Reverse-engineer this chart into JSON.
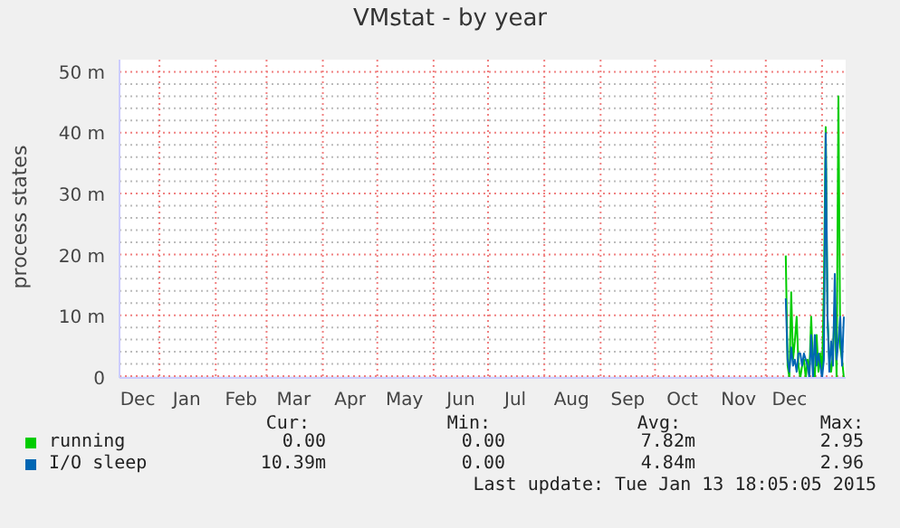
{
  "chart_data": {
    "type": "line",
    "title": "VMstat - by year",
    "ylabel": "process states",
    "x": [
      "2014-12-12",
      "2014-12-13",
      "2014-12-14",
      "2014-12-15",
      "2014-12-16",
      "2014-12-17",
      "2014-12-18",
      "2014-12-19",
      "2014-12-20",
      "2014-12-21",
      "2014-12-22",
      "2014-12-23",
      "2014-12-24",
      "2014-12-25",
      "2014-12-26",
      "2014-12-27",
      "2014-12-28",
      "2014-12-29",
      "2014-12-30",
      "2014-12-31",
      "2015-01-01",
      "2015-01-02",
      "2015-01-03",
      "2015-01-04",
      "2015-01-05",
      "2015-01-06",
      "2015-01-07",
      "2015-01-08",
      "2015-01-09",
      "2015-01-10",
      "2015-01-11",
      "2015-01-12",
      "2015-01-13"
    ],
    "series": [
      {
        "name": "running",
        "color": "#00cc00",
        "values": [
          20,
          2,
          0,
          14,
          3,
          6,
          10,
          2,
          0,
          2,
          3,
          0,
          3,
          1,
          10,
          2,
          0,
          7,
          1,
          4,
          1,
          15,
          41,
          10,
          3,
          1,
          4,
          12,
          0,
          46,
          5,
          3,
          0
        ]
      },
      {
        "name": "I/O sleep",
        "color": "#0066b3",
        "values": [
          13,
          3,
          1,
          5,
          2,
          3,
          1,
          4,
          4,
          2,
          4,
          3,
          2,
          0,
          7,
          0,
          7,
          2,
          4,
          2,
          0,
          3,
          40,
          10,
          1,
          6,
          2,
          17,
          3,
          6,
          10,
          2,
          10
        ]
      }
    ],
    "xlim": [
      "2013-12-10",
      "2015-01-14"
    ],
    "xticks": [
      {
        "value": "2013-12-20",
        "label": "Dec"
      },
      {
        "value": "2014-01-01",
        "label": null
      },
      {
        "value": "2014-01-16",
        "label": "Jan"
      },
      {
        "value": "2014-02-01",
        "label": null
      },
      {
        "value": "2014-02-15",
        "label": "Feb"
      },
      {
        "value": "2014-03-01",
        "label": null
      },
      {
        "value": "2014-03-16",
        "label": "Mar"
      },
      {
        "value": "2014-04-01",
        "label": null
      },
      {
        "value": "2014-04-16",
        "label": "Apr"
      },
      {
        "value": "2014-05-01",
        "label": null
      },
      {
        "value": "2014-05-16",
        "label": "May"
      },
      {
        "value": "2014-06-01",
        "label": null
      },
      {
        "value": "2014-06-16",
        "label": "Jun"
      },
      {
        "value": "2014-07-01",
        "label": null
      },
      {
        "value": "2014-07-16",
        "label": "Jul"
      },
      {
        "value": "2014-08-01",
        "label": null
      },
      {
        "value": "2014-08-16",
        "label": "Aug"
      },
      {
        "value": "2014-09-01",
        "label": null
      },
      {
        "value": "2014-09-16",
        "label": "Sep"
      },
      {
        "value": "2014-10-01",
        "label": null
      },
      {
        "value": "2014-10-16",
        "label": "Oct"
      },
      {
        "value": "2014-11-01",
        "label": null
      },
      {
        "value": "2014-11-16",
        "label": "Nov"
      },
      {
        "value": "2014-12-01",
        "label": null
      },
      {
        "value": "2014-12-14",
        "label": "Dec"
      },
      {
        "value": "2015-01-01",
        "label": null
      }
    ],
    "ylim": [
      0,
      52
    ],
    "yticks": [
      0,
      {
        "value": 2,
        "label": null
      },
      {
        "value": 4,
        "label": null
      },
      {
        "value": 6,
        "label": null
      },
      {
        "value": 8,
        "label": null
      },
      {
        "value": 10,
        "label": "10 m"
      },
      {
        "value": 12,
        "label": null
      },
      {
        "value": 14,
        "label": null
      },
      {
        "value": 16,
        "label": null
      },
      {
        "value": 18,
        "label": null
      },
      {
        "value": 20,
        "label": "20 m"
      },
      {
        "value": 22,
        "label": null
      },
      {
        "value": 24,
        "label": null
      },
      {
        "value": 26,
        "label": null
      },
      {
        "value": 28,
        "label": null
      },
      {
        "value": 30,
        "label": "30 m"
      },
      {
        "value": 32,
        "label": null
      },
      {
        "value": 34,
        "label": null
      },
      {
        "value": 36,
        "label": null
      },
      {
        "value": 38,
        "label": null
      },
      {
        "value": 40,
        "label": "40 m"
      },
      {
        "value": 42,
        "label": null
      },
      {
        "value": 44,
        "label": null
      },
      {
        "value": 46,
        "label": null
      },
      {
        "value": 48,
        "label": null
      },
      {
        "value": 50,
        "label": "50 m"
      }
    ],
    "grid": true,
    "legend": "bottom",
    "marker": "none",
    "line_style": "solid",
    "annotations": [
      "Cur:",
      "Min:",
      "Avg:",
      "Max:",
      "0.00",
      "0.00",
      "7.82m",
      "2.95",
      "10.39m",
      "0.00",
      "4.84m",
      "2.96",
      "Last update: Tue Jan 13 18:05:05 2015"
    ]
  }
}
